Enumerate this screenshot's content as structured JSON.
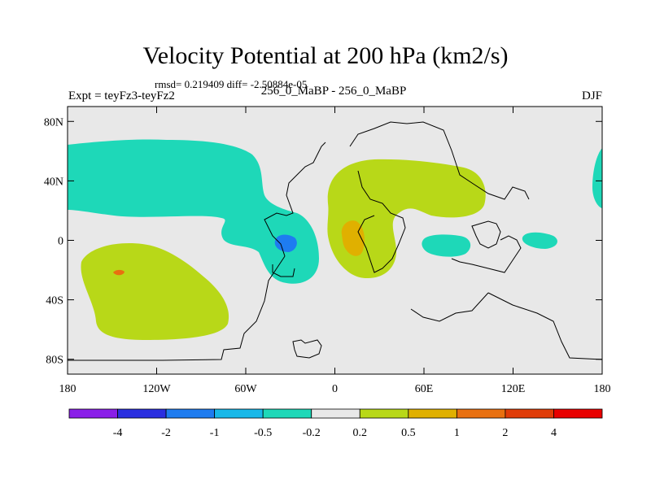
{
  "chart_data": {
    "type": "heatmap",
    "title": "Velocity Potential at 200 hPa (km2/s)",
    "stats_text": "rmsd= 0.219409 diff= -2.50884e-05",
    "left_label": "Expt = teyFz3-teyFz2",
    "center_label": "256_0_MaBP - 256_0_MaBP",
    "right_label": "DJF",
    "x_axis": {
      "range": [
        -180,
        180
      ],
      "ticks": [
        -180,
        -120,
        -60,
        0,
        60,
        120,
        180
      ],
      "tick_labels": [
        "180",
        "120W",
        "60W",
        "0",
        "60E",
        "120E",
        "180"
      ]
    },
    "y_axis": {
      "range": [
        -90,
        90
      ],
      "ticks": [
        80,
        40,
        0,
        -40,
        -80
      ],
      "tick_labels": [
        "80N",
        "40N",
        "0",
        "40S",
        "80S"
      ]
    },
    "colorbar": {
      "labels": [
        "-4",
        "-2",
        "-1",
        "-0.5",
        "-0.2",
        "0.2",
        "0.5",
        "1",
        "2",
        "4"
      ],
      "colors": [
        "#8a1ee8",
        "#2a2ee0",
        "#1e7cf0",
        "#18b8e8",
        "#1ed8b8",
        "#e8e8e8",
        "#b8d818",
        "#e0b000",
        "#e87010",
        "#e03c08",
        "#e80000"
      ]
    },
    "background_color": "#e8e8e8"
  }
}
